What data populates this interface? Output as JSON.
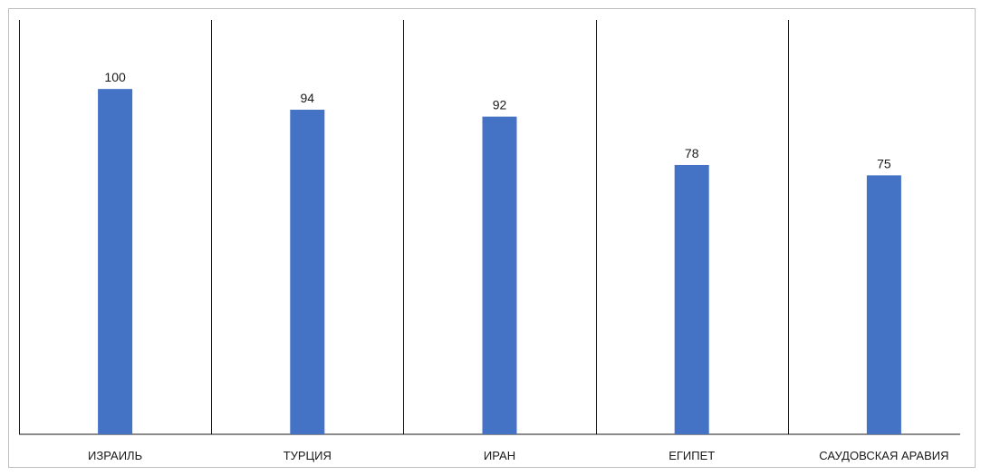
{
  "chart_data": {
    "type": "bar",
    "title": "",
    "xlabel": "",
    "ylabel": "",
    "categories": [
      "ИЗРАИЛЬ",
      "ТУРЦИЯ",
      "ИРАН",
      "ЕГИПЕТ",
      "САУДОВСКАЯ АРАВИЯ"
    ],
    "values": [
      100,
      94,
      92,
      78,
      75
    ],
    "ylim": [
      0,
      120
    ],
    "grid": false,
    "bar_color": "#4472c4"
  }
}
